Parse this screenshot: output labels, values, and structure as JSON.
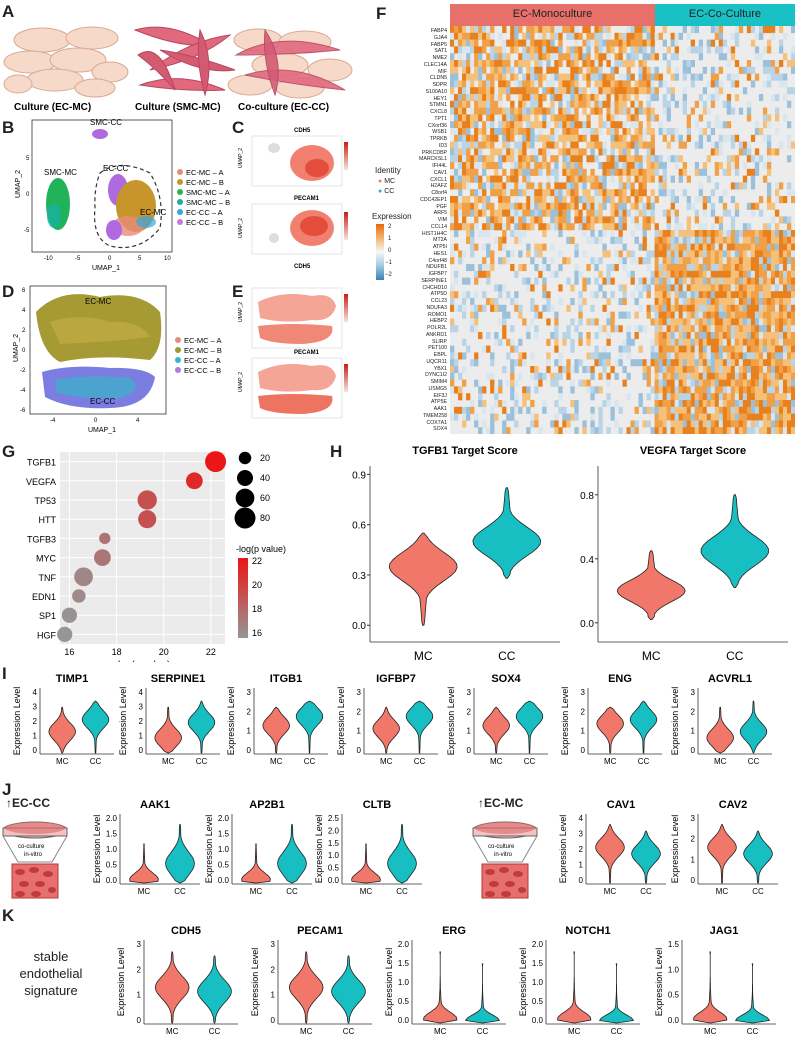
{
  "panels": {
    "A": "A",
    "B": "B",
    "C": "C",
    "D": "D",
    "E": "E",
    "F": "F",
    "G": "G",
    "H": "H",
    "I": "I",
    "J": "J",
    "K": "K"
  },
  "panel_a": {
    "captions": [
      "Culture (EC-MC)",
      "Culture (SMC-MC)",
      "Co-culture (EC-CC)"
    ]
  },
  "panel_b": {
    "xlabel": "UMAP_1",
    "ylabel": "UMAP_2",
    "cluster_labels": {
      "smc_cc": "SMC-CC",
      "smc_mc": "SMC-MC",
      "ec_cc": "EC-CC",
      "ec_mc": "EC-MC"
    },
    "xticks": [
      "-10",
      "-5",
      "0",
      "5",
      "10"
    ],
    "yticks": [
      "5",
      "0",
      "-5"
    ],
    "legend": [
      {
        "label": "EC-MC – A",
        "color": "#e88b7a"
      },
      {
        "label": "EC-MC – B",
        "color": "#c8952c"
      },
      {
        "label": "SMC-MC – A",
        "color": "#2bb34a"
      },
      {
        "label": "SMC-MC – B",
        "color": "#1aaea0"
      },
      {
        "label": "EC-CC – A",
        "color": "#34a7e0"
      },
      {
        "label": "EC-CC – B",
        "color": "#c47be0"
      }
    ]
  },
  "panel_c": {
    "titles": [
      "CDH5",
      "PECAM1"
    ],
    "ylabel": "UMAP_2"
  },
  "panel_d": {
    "xlabel": "UMAP_1",
    "ylabel": "UMAP_2",
    "cluster_labels": {
      "ec_mc": "EC-MC",
      "ec_cc": "EC-CC"
    },
    "xticks": [
      "-4",
      "0",
      "4"
    ],
    "yticks": [
      "6",
      "4",
      "2",
      "0",
      "-2",
      "-4",
      "-6"
    ],
    "legend": [
      {
        "label": "EC-MC – A",
        "color": "#e88b7a"
      },
      {
        "label": "EC-MC – B",
        "color": "#a09a2c"
      },
      {
        "label": "EC-CC – A",
        "color": "#34b7c8"
      },
      {
        "label": "EC-CC – B",
        "color": "#b07be0"
      }
    ]
  },
  "panel_e": {
    "titles": [
      "CDH5",
      "PECAM1"
    ],
    "ylabel": "UMAP_2"
  },
  "panel_f": {
    "groups": [
      "EC-Monoculture",
      "EC-Co-Culture"
    ],
    "identity_title": "Identity",
    "identity_items": [
      {
        "label": "MC",
        "color": "#f08070"
      },
      {
        "label": "CC",
        "color": "#1ab8c0"
      }
    ],
    "expression_title": "Expression",
    "expression_ticks": [
      "2",
      "1",
      "0",
      "−1",
      "−2"
    ],
    "genes": [
      "FABP4",
      "GJA4",
      "FABP5",
      "SAT1",
      "NME2",
      "CLEC14A",
      "MIF",
      "CLDN5",
      "SDPR",
      "S100A10",
      "HEY1",
      "STMN1",
      "CXCL8",
      "TPT1",
      "CXorf36",
      "WSB1",
      "TPRKB",
      "ID3",
      "PRKCDBP",
      "MARCKSL1",
      "IFI44L",
      "CAV1",
      "CXCL1",
      "H2AFZ",
      "C8orf4",
      "CDC42EP1",
      "PGF",
      "ARF5",
      "VIM",
      "CCL14",
      "HIST1H4C",
      "MT2A",
      "ATP5I",
      "HES1",
      "C4orf48",
      "NDUFB1",
      "IGFBP7",
      "SERPINE1",
      "CHCHD10",
      "ATP5D",
      "CCL23",
      "NDUFA3",
      "ROMO1",
      "HEBP2",
      "POLR2L",
      "ANKRD1",
      "SLIRP",
      "PET100",
      "EBPL",
      "UQCR11",
      "YBX1",
      "DYNC1I2",
      "SMIM4",
      "USMG5",
      "EIF3J",
      "ATP5E",
      "AAK1",
      "TMEM258",
      "COX7A1",
      "SOX4"
    ]
  },
  "panel_g": {
    "xlabel": "-log(p value)",
    "xticks": [
      "16",
      "18",
      "20",
      "22"
    ],
    "size_legend": [
      "20",
      "40",
      "60",
      "80"
    ],
    "color_legend_title": "-log(p value)",
    "color_legend_ticks": [
      "22",
      "20",
      "18",
      "16"
    ],
    "chart_data": {
      "type": "scatter",
      "categories": [
        "TGFB1",
        "VEGFA",
        "TP53",
        "HTT",
        "TGFB3",
        "MYC",
        "TNF",
        "EDN1",
        "SP1",
        "HGF"
      ],
      "x": [
        22.2,
        21.3,
        19.3,
        19.3,
        17.5,
        17.4,
        16.6,
        16.4,
        16.0,
        15.8
      ],
      "size": [
        80,
        45,
        65,
        55,
        15,
        45,
        60,
        25,
        35,
        35
      ],
      "xlim": [
        15.6,
        22.6
      ]
    }
  },
  "panel_h": {
    "plots": [
      {
        "title": "TGFB1 Target Score",
        "yticks": [
          "0.9",
          "0.6",
          "0.3",
          "0.0"
        ],
        "categories": [
          "MC",
          "CC"
        ]
      },
      {
        "title": "VEGFA Target Score",
        "yticks": [
          "0.8",
          "0.4",
          "0.0"
        ],
        "categories": [
          "MC",
          "CC"
        ]
      }
    ]
  },
  "panel_i": {
    "ylabel": "Expression Level",
    "plots": [
      {
        "title": "TIMP1",
        "yticks": [
          "4",
          "3",
          "2",
          "1",
          "0"
        ]
      },
      {
        "title": "SERPINE1",
        "yticks": [
          "4",
          "3",
          "2",
          "1",
          "0"
        ]
      },
      {
        "title": "ITGB1",
        "yticks": [
          "3",
          "2",
          "1",
          "0"
        ]
      },
      {
        "title": "IGFBP7",
        "yticks": [
          "3",
          "2",
          "1",
          "0"
        ]
      },
      {
        "title": "SOX4",
        "yticks": [
          "3",
          "2",
          "1",
          "0"
        ]
      },
      {
        "title": "ENG",
        "yticks": [
          "3",
          "2",
          "1",
          "0"
        ]
      },
      {
        "title": "ACVRL1",
        "yticks": [
          "3",
          "2",
          "1",
          "0"
        ]
      }
    ]
  },
  "panel_j": {
    "ylabel": "Expression Level",
    "left_label": "↑EC-CC",
    "right_label": "↑EC-MC",
    "dish_caption": [
      "co-culture",
      "in-vitro"
    ],
    "plots": [
      {
        "title": "AAK1",
        "yticks": [
          "2.0",
          "1.5",
          "1.0",
          "0.5",
          "0.0"
        ]
      },
      {
        "title": "AP2B1",
        "yticks": [
          "2.0",
          "1.5",
          "1.0",
          "0.5",
          "0.0"
        ]
      },
      {
        "title": "CLTB",
        "yticks": [
          "2.5",
          "2.0",
          "1.5",
          "1.0",
          "0.5",
          "0.0"
        ]
      },
      {
        "title": "CAV1",
        "yticks": [
          "4",
          "3",
          "2",
          "1",
          "0"
        ]
      },
      {
        "title": "CAV2",
        "yticks": [
          "3",
          "2",
          "1",
          "0"
        ]
      }
    ]
  },
  "panel_k": {
    "side_label": [
      "stable",
      "endothelial",
      "signature"
    ],
    "ylabel": "Expression Level",
    "plots": [
      {
        "title": "CDH5",
        "yticks": [
          "3",
          "2",
          "1",
          "0"
        ]
      },
      {
        "title": "PECAM1",
        "yticks": [
          "3",
          "2",
          "1",
          "0"
        ]
      },
      {
        "title": "ERG",
        "yticks": [
          "2.0",
          "1.5",
          "1.0",
          "0.5",
          "0.0"
        ]
      },
      {
        "title": "NOTCH1",
        "yticks": [
          "2.0",
          "1.5",
          "1.0",
          "0.5",
          "0.0"
        ]
      },
      {
        "title": "JAG1",
        "yticks": [
          "1.5",
          "1.0",
          "0.5",
          "0.0"
        ]
      }
    ]
  },
  "violin_categories": [
    "MC",
    "CC"
  ],
  "colors": {
    "mc": "#f0776a",
    "cc": "#18bfc2",
    "mono_bar": "#e8706a",
    "co_bar": "#19c1c4"
  }
}
